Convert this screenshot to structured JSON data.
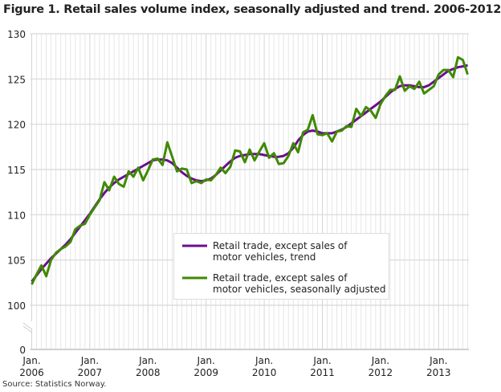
{
  "chart_data": {
    "type": "line",
    "title": "Figure 1. Retail sales volume index, seasonally adjusted and trend. 2006-2012",
    "source": "Source: Statistics Norway.",
    "xlabel": "",
    "ylabel": "",
    "x_start": "2006-01",
    "x_end": "2013-07",
    "x_ticks": [
      {
        "month": "Jan.",
        "year": "2006"
      },
      {
        "month": "Jan.",
        "year": "2007"
      },
      {
        "month": "Jan.",
        "year": "2008"
      },
      {
        "month": "Jan.",
        "year": "2009"
      },
      {
        "month": "Jan.",
        "year": "2010"
      },
      {
        "month": "Jan.",
        "year": "2011"
      },
      {
        "month": "Jan.",
        "year": "2012"
      },
      {
        "month": "Jan.",
        "year": "2013"
      }
    ],
    "y_ticks": [
      "130",
      "125",
      "120",
      "115",
      "110",
      "105",
      "100",
      "0"
    ],
    "ylim": [
      100,
      130
    ],
    "axis_break": true,
    "grid": true,
    "legend_position": "center-right",
    "series": [
      {
        "name": "Retail trade, except sales of motor vehicles, trend",
        "legend_lines": [
          "Retail trade, except sales of",
          "motor vehicles, trend"
        ],
        "color": "#6a0f8e",
        "values": [
          102.6,
          103.3,
          104.0,
          104.6,
          105.2,
          105.7,
          106.2,
          106.7,
          107.3,
          108.0,
          108.7,
          109.4,
          110.1,
          110.9,
          111.7,
          112.4,
          113.0,
          113.5,
          113.9,
          114.2,
          114.5,
          114.8,
          115.1,
          115.4,
          115.7,
          116.0,
          116.1,
          116.1,
          116.0,
          115.7,
          115.2,
          114.7,
          114.3,
          114.0,
          113.8,
          113.7,
          113.8,
          114.0,
          114.4,
          114.9,
          115.4,
          115.9,
          116.3,
          116.5,
          116.6,
          116.7,
          116.7,
          116.7,
          116.6,
          116.5,
          116.4,
          116.4,
          116.5,
          116.8,
          117.4,
          118.2,
          118.8,
          119.2,
          119.3,
          119.2,
          119.0,
          119.0,
          119.0,
          119.2,
          119.4,
          119.7,
          120.1,
          120.5,
          120.9,
          121.3,
          121.7,
          122.1,
          122.5,
          123.0,
          123.5,
          123.9,
          124.2,
          124.3,
          124.3,
          124.2,
          124.1,
          124.1,
          124.3,
          124.7,
          125.1,
          125.5,
          125.9,
          126.1,
          126.3,
          126.4,
          126.5
        ]
      },
      {
        "name": "Retail trade, except sales of motor vehicles, seasonally adjusted",
        "legend_lines": [
          "Retail trade, except sales of",
          "motor vehicles, seasonally adjusted"
        ],
        "color": "#3f8a00",
        "values": [
          102.3,
          103.4,
          104.4,
          103.2,
          105.0,
          105.8,
          106.2,
          106.5,
          107.0,
          108.4,
          108.8,
          109.0,
          110.0,
          110.8,
          111.6,
          113.6,
          112.7,
          114.2,
          113.4,
          113.1,
          114.8,
          114.2,
          115.2,
          113.8,
          114.9,
          116.1,
          116.2,
          115.5,
          118.0,
          116.4,
          114.8,
          115.1,
          115.0,
          113.5,
          113.7,
          113.5,
          113.9,
          113.8,
          114.4,
          115.2,
          114.6,
          115.3,
          117.1,
          117.0,
          115.8,
          117.2,
          116.0,
          117.0,
          117.9,
          116.3,
          116.8,
          115.6,
          115.7,
          116.5,
          117.9,
          116.9,
          119.1,
          119.4,
          121.0,
          118.9,
          118.8,
          119.0,
          118.1,
          119.2,
          119.3,
          119.8,
          119.7,
          121.7,
          120.9,
          121.9,
          121.5,
          120.7,
          122.2,
          123.1,
          123.8,
          123.8,
          125.3,
          123.7,
          124.2,
          123.9,
          124.7,
          123.4,
          123.8,
          124.2,
          125.5,
          126.0,
          126.0,
          125.2,
          127.4,
          127.1,
          125.5
        ]
      }
    ]
  }
}
